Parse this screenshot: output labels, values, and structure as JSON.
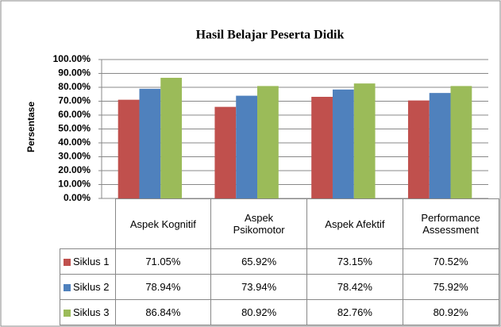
{
  "chart_data": {
    "type": "bar",
    "title": "Hasil Belajar Peserta Didik",
    "y_label": "Persentase",
    "categories": [
      "Aspek Kognitif",
      "Aspek Psikomotor",
      "Aspek Afektif",
      "Performance Assessment"
    ],
    "series": [
      {
        "name": "Siklus 1",
        "color": "#c0504d",
        "values": [
          71.05,
          65.92,
          73.15,
          70.52
        ],
        "value_labels": [
          "71.05%",
          "65.92%",
          "73.15%",
          "70.52%"
        ]
      },
      {
        "name": "Siklus 2",
        "color": "#4f81bd",
        "values": [
          78.94,
          73.94,
          78.42,
          75.92
        ],
        "value_labels": [
          "78.94%",
          "73.94%",
          "78.42%",
          "75.92%"
        ]
      },
      {
        "name": "Siklus 3",
        "color": "#9bbb59",
        "values": [
          86.84,
          80.92,
          82.76,
          80.92
        ],
        "value_labels": [
          "86.84%",
          "80.92%",
          "82.76%",
          "80.92%"
        ]
      }
    ],
    "ylim": [
      0,
      100
    ],
    "yticks": [
      {
        "value": 0,
        "label": "0.00%"
      },
      {
        "value": 10,
        "label": "10.00%"
      },
      {
        "value": 20,
        "label": "20.00%"
      },
      {
        "value": 30,
        "label": "30.00%"
      },
      {
        "value": 40,
        "label": "40.00%"
      },
      {
        "value": 50,
        "label": "50.00%"
      },
      {
        "value": 60,
        "label": "60.00%"
      },
      {
        "value": 70,
        "label": "70.00%"
      },
      {
        "value": 80,
        "label": "80.00%"
      },
      {
        "value": 90,
        "label": "90.00%"
      },
      {
        "value": 100,
        "label": "100.00%"
      }
    ],
    "grid": true
  }
}
